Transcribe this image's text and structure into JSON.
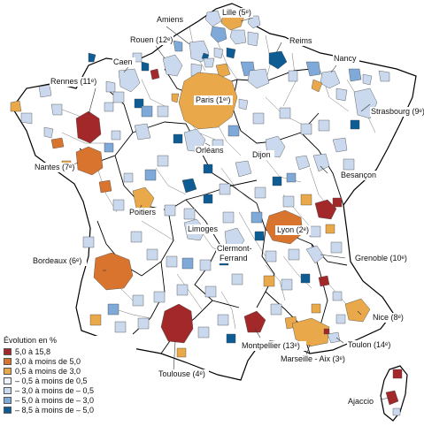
{
  "legend": {
    "title": "Évolution en %",
    "items": [
      {
        "label": "5,0 à 15,8",
        "color": "#a3282a"
      },
      {
        "label": "3,0 à moins de 5,0",
        "color": "#d9742f"
      },
      {
        "label": "0,5 à moins de 3,0",
        "color": "#e9a84a"
      },
      {
        "label": "– 0,5 à moins de 0,5",
        "color": "#eef2f9"
      },
      {
        "label": "– 3,0 à moins de – 0,5",
        "color": "#cbd9ee"
      },
      {
        "label": "– 5,0 à moins de – 3,0",
        "color": "#7ea9d8"
      },
      {
        "label": "– 8,5 à moins de – 5,0",
        "color": "#0d5c93"
      }
    ]
  },
  "cities": [
    {
      "name": "Lille (5ᵉ)"
    },
    {
      "name": "Amiens"
    },
    {
      "name": "Rouen (12ᵉ)"
    },
    {
      "name": "Reims"
    },
    {
      "name": "Caen"
    },
    {
      "name": "Nancy"
    },
    {
      "name": "Rennes (11ᵉ)"
    },
    {
      "name": "Paris (1ᵉʳ)"
    },
    {
      "name": "Strasbourg (9ᵉ)"
    },
    {
      "name": "Nantes (7ᵉ)"
    },
    {
      "name": "Orléans"
    },
    {
      "name": "Dijon"
    },
    {
      "name": "Besançon"
    },
    {
      "name": "Poitiers"
    },
    {
      "name": "Limoges"
    },
    {
      "name": "Lyon (2ᵉ)"
    },
    {
      "name": "Clermont-"
    },
    {
      "name": "Ferrand"
    },
    {
      "name": "Bordeaux (6ᵉ)"
    },
    {
      "name": "Grenoble (10ᵉ)"
    },
    {
      "name": "Nice (8ᵉ)"
    },
    {
      "name": "Montpellier (13ᵉ)"
    },
    {
      "name": "Toulon (14ᵉ)"
    },
    {
      "name": "Toulouse (4ᵉ)"
    },
    {
      "name": "Marseille - Aix (3ᵉ)"
    },
    {
      "name": "Ajaccio"
    }
  ]
}
